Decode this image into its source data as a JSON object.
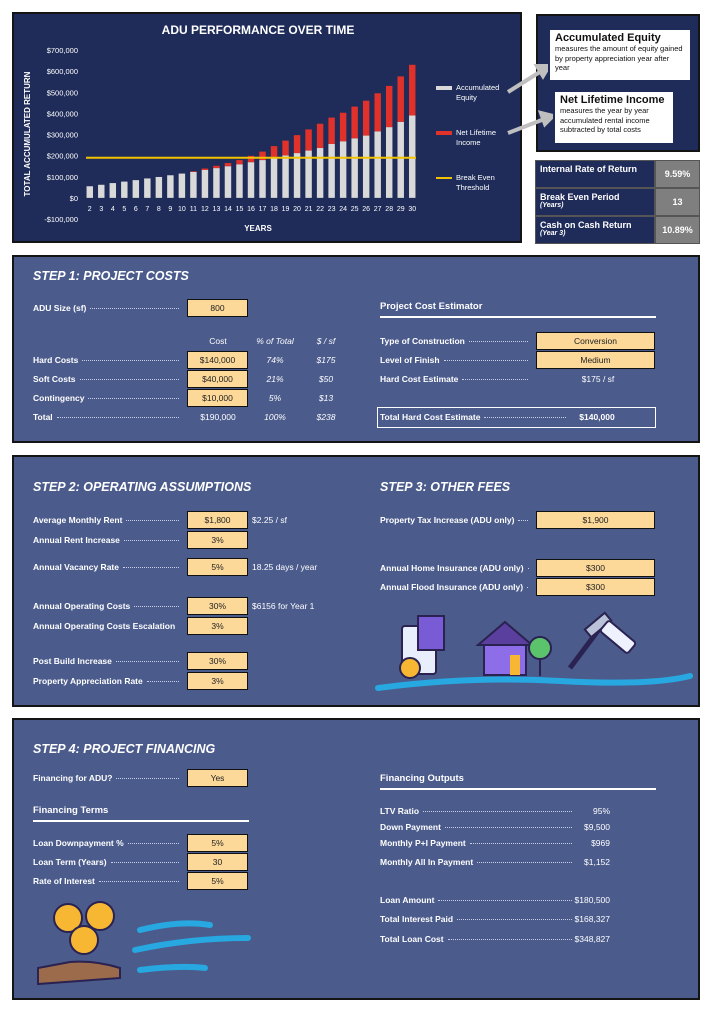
{
  "chart_data": {
    "type": "bar",
    "stacked": true,
    "title": "ADU PERFORMANCE OVER TIME",
    "x_label": "YEARS",
    "y_label": "TOTAL ACCUMULATED RETURN",
    "categories": [
      2,
      3,
      4,
      5,
      6,
      7,
      8,
      9,
      10,
      11,
      12,
      13,
      14,
      15,
      16,
      17,
      18,
      19,
      20,
      21,
      22,
      23,
      24,
      25,
      26,
      27,
      28,
      29,
      30
    ],
    "series": [
      {
        "name": "Accumulated Equity",
        "color": "#d9d9d9",
        "values": [
          55000,
          62000,
          70000,
          77000,
          84000,
          92000,
          99000,
          107000,
          115000,
          123000,
          132000,
          141000,
          150000,
          159000,
          169000,
          179000,
          190000,
          201000,
          212000,
          224000,
          236000,
          255000,
          268000,
          282000,
          295000,
          315000,
          335000,
          360000,
          390000
        ]
      },
      {
        "name": "Net Lifetime Income",
        "color": "#e0322a",
        "values": [
          0,
          0,
          0,
          0,
          0,
          0,
          0,
          0,
          0,
          3000,
          7000,
          11000,
          15000,
          20000,
          30000,
          40000,
          55000,
          70000,
          85000,
          100000,
          115000,
          125000,
          135000,
          150000,
          165000,
          180000,
          195000,
          215000,
          240000
        ]
      }
    ],
    "break_even": {
      "name": "Break Even Threshold",
      "value": 190000,
      "color": "#f2c200"
    },
    "ylim": [
      -100000,
      700000
    ],
    "yticks": [
      {
        "value": -100000,
        "label": "-$100,000"
      },
      {
        "value": 0,
        "label": "$0"
      },
      {
        "value": 100000,
        "label": "$100,000"
      },
      {
        "value": 200000,
        "label": "$200,000"
      },
      {
        "value": 300000,
        "label": "$300,000"
      },
      {
        "value": 400000,
        "label": "$400,000"
      },
      {
        "value": 500000,
        "label": "$500,000"
      },
      {
        "value": 600000,
        "label": "$600,000"
      },
      {
        "value": 700000,
        "label": "$700,000"
      }
    ],
    "grid": false
  },
  "callouts": [
    {
      "title": "Accumulated Equity",
      "text": "measures the amount of equity gained by property appreciation year after year"
    },
    {
      "title": "Net Lifetime Income",
      "text": "measures the year by year accumulated rental income subtracted by total costs"
    }
  ],
  "metrics": [
    {
      "label": "Internal Rate of Return",
      "value": "9.59%"
    },
    {
      "label": "Break Even Period",
      "sub": "(Years)",
      "value": "13"
    },
    {
      "label": "Cash on Cash Return",
      "sub": "(Year 3)",
      "value": "10.89%"
    }
  ],
  "step1": {
    "title": "STEP 1: PROJECT COSTS",
    "adu_size": {
      "label": "ADU Size (sf)",
      "value": "800"
    },
    "columns": [
      "Cost",
      "% of Total",
      "$ / sf"
    ],
    "rows": [
      {
        "label": "Hard Costs",
        "cells": [
          "$140,000",
          "74%",
          "$175"
        ]
      },
      {
        "label": "Soft Costs",
        "cells": [
          "$40,000",
          "21%",
          "$50"
        ]
      },
      {
        "label": "Contingency",
        "cells": [
          "$10,000",
          "5%",
          "$13"
        ]
      },
      {
        "label": "Total",
        "cells": [
          "$190,000",
          "100%",
          "$238"
        ]
      }
    ],
    "estimator": {
      "title": "Project Cost Estimator",
      "rows": [
        {
          "label": "Type of Construction",
          "value": "Conversion"
        },
        {
          "label": "Level of Finish",
          "value": "Medium"
        },
        {
          "label": "Hard Cost Estimate",
          "value": "$175 / sf"
        }
      ],
      "total": {
        "label": "Total Hard Cost Estimate",
        "value": "$140,000"
      }
    }
  },
  "step2": {
    "title": "STEP 2: OPERATING ASSUMPTIONS",
    "rows": [
      {
        "label": "Average Monthly Rent",
        "value": "$1,800",
        "note": "$2.25 / sf"
      },
      {
        "label": "Annual Rent Increase",
        "value": "3%"
      },
      {
        "label": "Annual Vacancy Rate",
        "value": "5%",
        "note": "18.25 days / year"
      },
      {
        "label": "Annual Operating Costs",
        "value": "30%",
        "note": "$6156 for Year 1"
      },
      {
        "label": "Annual Operating Costs Escalation",
        "value": "3%"
      },
      {
        "label": "Post Build Increase",
        "value": "30%"
      },
      {
        "label": "Property Appreciation Rate",
        "value": "3%"
      }
    ]
  },
  "step3": {
    "title": "STEP 3: OTHER FEES",
    "rows": [
      {
        "label": "Property Tax Increase (ADU only)",
        "value": "$1,900"
      },
      {
        "label": "Annual Home Insurance (ADU only)",
        "value": "$300"
      },
      {
        "label": "Annual Flood Insurance (ADU only)",
        "value": "$300"
      }
    ]
  },
  "step4": {
    "title": "STEP 4: PROJECT FINANCING",
    "financing": {
      "label": "Financing for ADU?",
      "value": "Yes"
    },
    "terms_title": "Financing Terms",
    "terms": [
      {
        "label": "Loan Downpayment %",
        "value": "5%"
      },
      {
        "label": "Loan Term (Years)",
        "value": "30"
      },
      {
        "label": "Rate of Interest",
        "value": "5%"
      }
    ],
    "outputs_title": "Financing Outputs",
    "outputs": [
      {
        "label": "LTV Ratio",
        "value": "95%"
      },
      {
        "label": "Down Payment",
        "value": "$9,500"
      },
      {
        "label": "Monthly P+I Payment",
        "value": "$969"
      },
      {
        "label": "Monthly All In Payment",
        "value": "$1,152"
      },
      {
        "label": "Loan Amount",
        "value": "$180,500"
      },
      {
        "label": "Total Interest Paid",
        "value": "$168,327"
      },
      {
        "label": "Total Loan Cost",
        "value": "$348,827"
      }
    ]
  }
}
